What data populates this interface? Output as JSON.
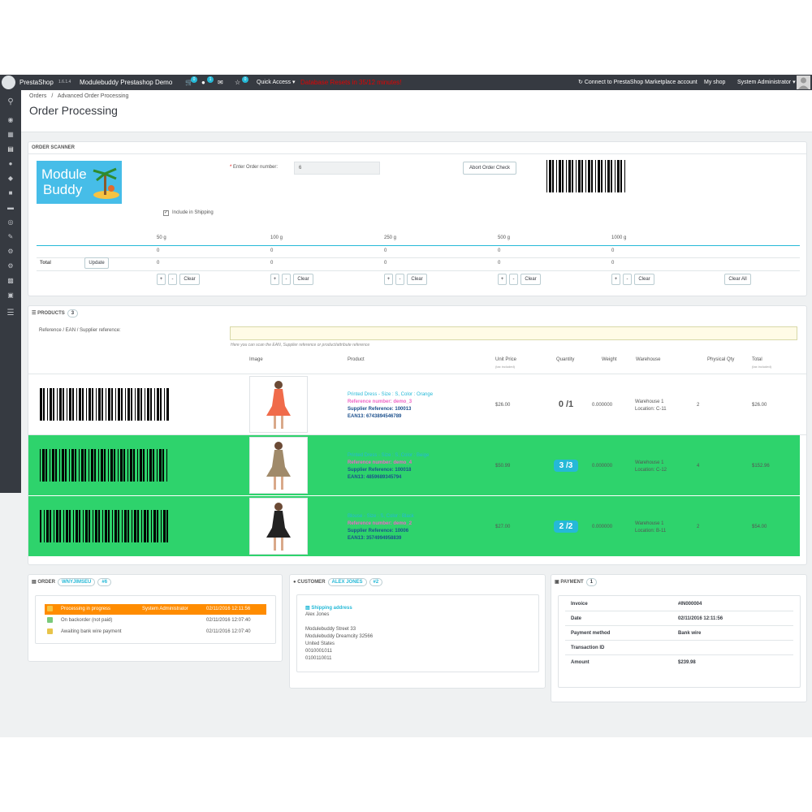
{
  "topbar": {
    "brand": "PrestaShop",
    "version": "1.6.1.4",
    "shop_name": "Modulebuddy Prestashop Demo",
    "badges": [
      "0",
      "1",
      "0"
    ],
    "quick_access": "Quick Access",
    "alert": "Database Resets in 35/12 minutes!",
    "connect": "Connect to PrestaShop Marketplace account",
    "my_shop": "My shop",
    "user": "System Administrator"
  },
  "breadcrumb": {
    "root": "Orders",
    "separator": "/",
    "current": "Advanced Order Processing"
  },
  "page_title": "Order Processing",
  "scanner": {
    "title": "ORDER SCANNER",
    "logo_line1": "Module",
    "logo_line2": "Buddy",
    "order_label": "Enter Order number:",
    "order_value": "6",
    "abort_label": "Abort Order Check",
    "include_shipping": "Include in Shipping",
    "weights": [
      "50 g",
      "100 g",
      "250 g",
      "500 g",
      "1000 g"
    ],
    "row_values": [
      "0",
      "0",
      "0",
      "0",
      "0"
    ],
    "total_label": "Total",
    "update_label": "Update",
    "total_values": [
      "0",
      "0",
      "0",
      "0",
      "0"
    ],
    "plus": "+",
    "minus": "-",
    "clear": "Clear",
    "clear_all": "Clear All"
  },
  "products": {
    "title": "PRODUCTS",
    "count": "3",
    "search_label": "Reference / EAN / Supplier reference:",
    "search_hint": "Here you can scan the EAN, Supplier reference or product/attribute reference",
    "headers": {
      "image": "Image",
      "product": "Product",
      "unit_price": "Unit Price",
      "unit_price_sub": "(tax included)",
      "quantity": "Quantity",
      "weight": "Weight",
      "warehouse": "Warehouse",
      "physical_qty": "Physical Qty",
      "total": "Total",
      "total_sub": "(tax included)"
    },
    "rows": [
      {
        "name": "Printed Dress - Size : S, Color : Orange",
        "reference": "Reference number: demo_3",
        "supplier": "Supplier Reference: 100013",
        "ean": "EAN13: 6743894546789",
        "unit_price": "$26.00",
        "quantity": "0 /1",
        "weight": "0.000000",
        "warehouse": "Warehouse 1",
        "location": "Location: C-11",
        "physical_qty": "2",
        "total": "$26.00",
        "complete": false
      },
      {
        "name": "Printed Dress - Size : S, Color : Beige",
        "reference": "Reference number: demo_4",
        "supplier": "Supplier Reference: 100018",
        "ean": "EAN13: 4859689345794",
        "unit_price": "$50.99",
        "quantity": "3 /3",
        "weight": "0.000000",
        "warehouse": "Warehouse 1",
        "location": "Location: C-12",
        "physical_qty": "4",
        "total": "$152.96",
        "complete": true
      },
      {
        "name": "Blouse - Size : S, Color : Black",
        "reference": "Reference number: demo_2",
        "supplier": "Supplier Reference: 10006",
        "ean": "EAN13: 3574994958839",
        "unit_price": "$27.00",
        "quantity": "2 /2",
        "weight": "0.000000",
        "warehouse": "Warehouse 1",
        "location": "Location: B-11",
        "physical_qty": "2",
        "total": "$54.00",
        "complete": true
      }
    ]
  },
  "order": {
    "title": "ORDER",
    "reference": "WNYJIMSEU",
    "number": "#6",
    "history": [
      {
        "status": "Processing in progress",
        "employee": "System Administrator",
        "date": "02/11/2016 12:11:56",
        "current": true
      },
      {
        "status": "On backorder (not paid)",
        "employee": "",
        "date": "02/11/2016 12:07:40",
        "current": false
      },
      {
        "status": "Awaiting bank wire payment",
        "employee": "",
        "date": "02/11/2016 12:07:40",
        "current": false
      }
    ]
  },
  "customer": {
    "title": "CUSTOMER",
    "name_pill": "ALEX JONES",
    "number": "#2",
    "shipping_title": "Shipping address",
    "lines": [
      "Alex Jones",
      "Modulebuddy Street 33",
      "Modulebuddy Dreamcity 32566",
      "United States",
      "0010001011",
      "0100110011"
    ]
  },
  "payment": {
    "title": "PAYMENT",
    "count": "1",
    "rows": [
      {
        "label": "Invoice",
        "value": "#IN000004"
      },
      {
        "label": "Date",
        "value": "02/11/2016 12:11:56"
      },
      {
        "label": "Payment method",
        "value": "Bank wire"
      },
      {
        "label": "Transaction ID",
        "value": ""
      },
      {
        "label": "Amount",
        "value": "$239.98"
      }
    ]
  },
  "colors": {
    "sidebar": "#363a41",
    "accent": "#25b9d7",
    "complete_row": "#2ed36c",
    "current_status": "#ff8c00",
    "alert": "#e30000"
  }
}
